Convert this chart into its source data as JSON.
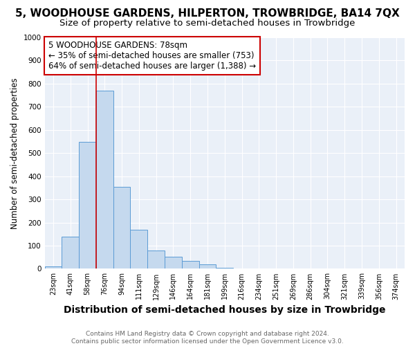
{
  "title": "5, WOODHOUSE GARDENS, HILPERTON, TROWBRIDGE, BA14 7QX",
  "subtitle": "Size of property relative to semi-detached houses in Trowbridge",
  "xlabel": "Distribution of semi-detached houses by size in Trowbridge",
  "ylabel": "Number of semi-detached properties",
  "footer_line1": "Contains HM Land Registry data © Crown copyright and database right 2024.",
  "footer_line2": "Contains public sector information licensed under the Open Government Licence v3.0.",
  "annotation_line1": "5 WOODHOUSE GARDENS: 78sqm",
  "annotation_line2": "← 35% of semi-detached houses are smaller (753)",
  "annotation_line3": "64% of semi-detached houses are larger (1,388) →",
  "bar_labels": [
    "23sqm",
    "41sqm",
    "58sqm",
    "76sqm",
    "94sqm",
    "111sqm",
    "129sqm",
    "146sqm",
    "164sqm",
    "181sqm",
    "199sqm",
    "216sqm",
    "234sqm",
    "251sqm",
    "269sqm",
    "286sqm",
    "304sqm",
    "321sqm",
    "339sqm",
    "356sqm",
    "374sqm"
  ],
  "bar_values": [
    10,
    140,
    548,
    770,
    355,
    168,
    80,
    53,
    35,
    18,
    5,
    2,
    0,
    0,
    0,
    0,
    0,
    0,
    0,
    0,
    0
  ],
  "bar_color": "#c5d9ee",
  "bar_edge_color": "#5b9bd5",
  "vline_color": "#cc0000",
  "annotation_box_color": "#cc0000",
  "vline_x": 2.5,
  "ylim": [
    0,
    1000
  ],
  "yticks": [
    0,
    100,
    200,
    300,
    400,
    500,
    600,
    700,
    800,
    900,
    1000
  ],
  "background_color": "#eaf0f8",
  "grid_color": "#ffffff",
  "fig_background": "#ffffff",
  "title_fontsize": 11,
  "subtitle_fontsize": 9.5,
  "ylabel_fontsize": 8.5,
  "xlabel_fontsize": 10,
  "tick_fontsize": 7,
  "footer_fontsize": 6.5,
  "annotation_fontsize": 8.5
}
